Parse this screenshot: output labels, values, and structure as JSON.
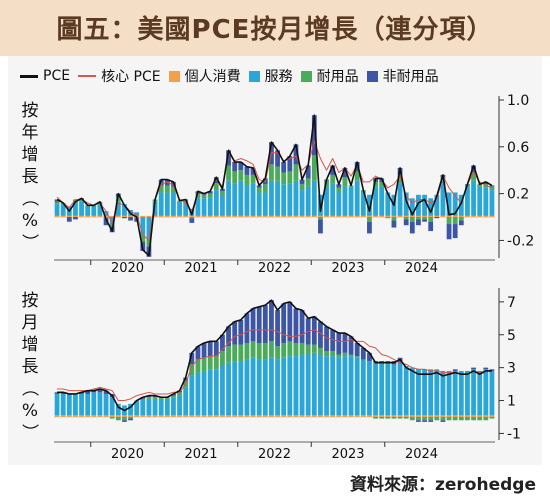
{
  "header": {
    "title": "圖五：美國PCE按月增長（連分項）"
  },
  "legend": [
    {
      "label": "PCE",
      "kind": "line",
      "color": "#111111"
    },
    {
      "label": "核心 PCE",
      "kind": "line",
      "color": "#d9534f"
    },
    {
      "label": "個人消費",
      "kind": "box",
      "color": "#f4a04a"
    },
    {
      "label": "服務",
      "kind": "box",
      "color": "#2aa7d9"
    },
    {
      "label": "耐用品",
      "kind": "box",
      "color": "#4aab5a"
    },
    {
      "label": "非耐用品",
      "kind": "box",
      "color": "#3d55a5"
    }
  ],
  "source": "資料來源：zerohedge",
  "chart_data": [
    {
      "type": "bar",
      "ylabel": "按年增長（%）",
      "ylim": [
        -0.35,
        1.0
      ],
      "yticks": [
        1.0,
        0.6,
        0.2,
        -0.2
      ],
      "ytick_labels": [
        "1.0",
        "0.6",
        "0.2",
        "-0.2"
      ],
      "xticks": [
        {
          "label": "2020",
          "year": 2020
        },
        {
          "label": "2021",
          "year": 2021
        },
        {
          "label": "2022",
          "year": 2022
        },
        {
          "label": "2023",
          "year": 2023
        },
        {
          "label": "2024",
          "year": 2024
        }
      ],
      "x_start": "2019-07",
      "series": [
        {
          "name": "PCE",
          "type": "line",
          "color": "#111111",
          "values": [
            0.15,
            0.12,
            0.05,
            0.13,
            0.16,
            0.1,
            0.1,
            0.13,
            -0.02,
            -0.12,
            0.2,
            0.1,
            0.03,
            0.0,
            -0.28,
            -0.33,
            0.15,
            0.32,
            0.32,
            0.3,
            0.14,
            0.15,
            0.02,
            0.22,
            0.2,
            0.22,
            0.34,
            0.24,
            0.57,
            0.47,
            0.47,
            0.43,
            0.42,
            0.27,
            0.33,
            0.64,
            0.57,
            0.47,
            0.52,
            0.62,
            0.32,
            0.44,
            0.87,
            0.05,
            0.32,
            0.44,
            0.28,
            0.42,
            0.27,
            0.47,
            0.23,
            0.05,
            0.33,
            0.33,
            0.2,
            0.1,
            0.42,
            0.14,
            0.02,
            0.12,
            0.15,
            0.04,
            0.18,
            0.36,
            0.02,
            0.03,
            0.12,
            0.28,
            0.44,
            0.28,
            0.3,
            0.27
          ]
        },
        {
          "name": "核心 PCE",
          "type": "line",
          "color": "#d9534f",
          "values": [
            0.17,
            0.12,
            0.08,
            0.15,
            0.15,
            0.12,
            0.1,
            0.12,
            0.05,
            -0.05,
            0.12,
            0.1,
            0.05,
            0.02,
            -0.15,
            -0.2,
            0.15,
            0.28,
            0.3,
            0.27,
            0.15,
            0.12,
            0.05,
            0.2,
            0.2,
            0.22,
            0.32,
            0.26,
            0.55,
            0.48,
            0.5,
            0.48,
            0.45,
            0.32,
            0.3,
            0.55,
            0.55,
            0.48,
            0.5,
            0.52,
            0.4,
            0.45,
            0.65,
            0.5,
            0.4,
            0.5,
            0.38,
            0.42,
            0.35,
            0.45,
            0.3,
            0.3,
            0.35,
            0.32,
            0.25,
            0.28,
            0.35,
            0.18,
            0.12,
            0.15,
            0.15,
            0.12,
            0.15,
            0.35,
            0.25,
            0.18,
            0.12,
            0.28,
            0.38,
            0.3,
            0.27,
            0.25
          ]
        },
        {
          "name": "個人消費",
          "type": "bar",
          "color": "#f4a04a",
          "values": [
            0.01,
            0.01,
            0.01,
            0.01,
            0.01,
            0.01,
            0.01,
            0.01,
            0.01,
            0.01,
            0.01,
            0.01,
            0.01,
            0.01,
            0.01,
            0.01,
            0.01,
            0.01,
            0.01,
            0.01,
            0.01,
            0.01,
            0.01,
            0.01,
            0.01,
            0.01,
            0.01,
            0.01,
            0.01,
            0.01,
            0.01,
            0.01,
            0.01,
            0.01,
            0.01,
            0.01,
            0.01,
            0.01,
            0.01,
            0.01,
            0.01,
            0.01,
            0.01,
            0.01,
            0.01,
            0.01,
            0.01,
            0.01,
            0.01,
            0.01,
            0.01,
            0.01,
            0.01,
            0.01,
            0.01,
            0.01,
            0.01,
            0.01,
            0.01,
            0.01,
            0.01,
            0.01,
            0.01,
            0.01,
            0.01,
            0.01,
            0.01,
            0.01,
            0.01,
            0.01,
            0.01,
            0.01
          ]
        },
        {
          "name": "服務",
          "type": "bar",
          "color": "#2aa7d9",
          "values": [
            0.1,
            0.1,
            0.08,
            0.12,
            0.12,
            0.08,
            0.08,
            0.1,
            0.04,
            -0.05,
            0.12,
            0.1,
            0.05,
            0.03,
            -0.15,
            -0.18,
            0.12,
            0.2,
            0.2,
            0.2,
            0.12,
            0.1,
            0.06,
            0.15,
            0.15,
            0.16,
            0.22,
            0.17,
            0.3,
            0.28,
            0.3,
            0.26,
            0.28,
            0.2,
            0.2,
            0.3,
            0.3,
            0.27,
            0.28,
            0.3,
            0.22,
            0.25,
            0.3,
            0.18,
            0.25,
            0.28,
            0.2,
            0.25,
            0.25,
            0.3,
            0.2,
            0.18,
            0.25,
            0.25,
            0.2,
            0.18,
            0.28,
            0.2,
            0.15,
            0.18,
            0.18,
            0.15,
            0.18,
            0.3,
            0.2,
            0.2,
            0.18,
            0.25,
            0.3,
            0.25,
            0.24,
            0.22
          ]
        },
        {
          "name": "耐用品",
          "type": "bar",
          "color": "#4aab5a",
          "values": [
            0.02,
            0.01,
            0.0,
            0.02,
            0.02,
            0.01,
            0.01,
            0.02,
            -0.01,
            -0.03,
            0.04,
            0.0,
            0.0,
            -0.01,
            -0.06,
            -0.07,
            0.02,
            0.06,
            0.06,
            0.05,
            0.01,
            0.03,
            -0.01,
            0.04,
            0.03,
            0.03,
            0.06,
            0.04,
            0.13,
            0.1,
            0.09,
            0.09,
            0.07,
            0.04,
            0.07,
            0.14,
            0.12,
            0.1,
            0.1,
            0.14,
            0.05,
            0.07,
            0.22,
            -0.02,
            0.05,
            0.07,
            0.04,
            0.08,
            0.01,
            0.08,
            0.02,
            -0.04,
            0.04,
            0.04,
            -0.01,
            -0.03,
            0.07,
            -0.02,
            -0.04,
            -0.02,
            -0.02,
            -0.04,
            0.0,
            0.03,
            -0.06,
            -0.06,
            -0.03,
            0.01,
            0.07,
            0.02,
            0.03,
            0.03
          ]
        },
        {
          "name": "非耐用品",
          "type": "bar",
          "color": "#3d55a5",
          "values": [
            0.02,
            0.0,
            -0.04,
            -0.02,
            0.01,
            0.0,
            0.0,
            0.0,
            -0.06,
            -0.05,
            0.03,
            -0.01,
            -0.03,
            -0.03,
            -0.08,
            -0.09,
            0.0,
            0.05,
            0.05,
            0.04,
            0.0,
            0.01,
            -0.04,
            0.02,
            0.01,
            0.02,
            0.05,
            0.02,
            0.13,
            0.08,
            0.07,
            0.07,
            0.06,
            0.02,
            0.05,
            0.19,
            0.14,
            0.09,
            0.13,
            0.17,
            0.04,
            0.11,
            0.34,
            -0.12,
            0.01,
            0.08,
            0.03,
            0.08,
            0.0,
            0.08,
            0.0,
            -0.1,
            0.03,
            0.03,
            0.0,
            -0.06,
            0.06,
            -0.05,
            -0.1,
            -0.05,
            -0.02,
            -0.08,
            -0.01,
            0.02,
            -0.13,
            -0.12,
            -0.04,
            0.01,
            0.06,
            0.0,
            0.02,
            0.01
          ]
        }
      ]
    },
    {
      "type": "bar",
      "ylabel": "按月增長（%）",
      "ylim": [
        -1.4,
        7.6
      ],
      "yticks": [
        7,
        5,
        3,
        1,
        -1
      ],
      "ytick_labels": [
        "7",
        "5",
        "3",
        "1",
        "-1"
      ],
      "xticks": [
        {
          "label": "2020",
          "year": 2020
        },
        {
          "label": "2021",
          "year": 2021
        },
        {
          "label": "2022",
          "year": 2022
        },
        {
          "label": "2023",
          "year": 2023
        },
        {
          "label": "2024",
          "year": 2024
        }
      ],
      "x_start": "2019-07",
      "series": [
        {
          "name": "PCE",
          "type": "line",
          "color": "#111111",
          "values": [
            1.5,
            1.5,
            1.4,
            1.4,
            1.5,
            1.6,
            1.6,
            1.7,
            1.6,
            1.3,
            0.6,
            0.4,
            0.6,
            1.0,
            1.2,
            1.3,
            1.3,
            1.2,
            1.2,
            1.4,
            1.6,
            2.4,
            3.9,
            4.3,
            4.5,
            4.6,
            4.6,
            5.0,
            5.5,
            5.8,
            5.9,
            6.3,
            6.6,
            6.7,
            6.8,
            7.1,
            6.5,
            6.9,
            7.0,
            6.6,
            6.5,
            6.0,
            6.1,
            5.8,
            5.5,
            5.3,
            5.1,
            5.1,
            4.9,
            4.5,
            4.2,
            3.9,
            3.3,
            3.3,
            3.3,
            3.3,
            3.5,
            3.0,
            2.8,
            2.6,
            2.6,
            2.6,
            2.7,
            2.5,
            2.6,
            2.7,
            2.6,
            2.6,
            2.8,
            2.6,
            2.8,
            2.8
          ]
        },
        {
          "name": "核心 PCE",
          "type": "line",
          "color": "#d9534f",
          "values": [
            1.7,
            1.7,
            1.6,
            1.6,
            1.6,
            1.6,
            1.7,
            1.8,
            1.7,
            1.6,
            1.0,
            1.0,
            1.1,
            1.3,
            1.4,
            1.5,
            1.4,
            1.4,
            1.4,
            1.5,
            1.5,
            2.0,
            3.1,
            3.5,
            3.6,
            3.7,
            3.7,
            4.1,
            4.5,
            4.9,
            5.0,
            5.2,
            5.3,
            5.3,
            5.3,
            5.3,
            5.2,
            5.0,
            4.9,
            4.9,
            5.0,
            5.2,
            5.3,
            5.1,
            4.8,
            4.7,
            4.6,
            4.6,
            4.7,
            4.6,
            4.6,
            4.3,
            4.2,
            3.8,
            3.7,
            3.5,
            3.3,
            3.2,
            3.0,
            2.9,
            2.9,
            2.8,
            2.8,
            2.7,
            2.7,
            2.7,
            2.6,
            2.6,
            2.8,
            2.7,
            2.8,
            2.8
          ]
        },
        {
          "name": "個人消費",
          "type": "bar",
          "color": "#f4a04a",
          "values": [
            0.1,
            0.1,
            0.1,
            0.1,
            0.1,
            0.1,
            0.1,
            0.1,
            0.1,
            0.1,
            0.1,
            0.1,
            0.1,
            0.1,
            0.1,
            0.1,
            0.1,
            0.1,
            0.1,
            0.1,
            0.1,
            0.1,
            0.1,
            0.1,
            0.1,
            0.1,
            0.1,
            0.1,
            0.1,
            0.1,
            0.1,
            0.1,
            0.1,
            0.1,
            0.1,
            0.1,
            0.1,
            0.1,
            0.1,
            0.1,
            0.1,
            0.1,
            0.1,
            0.1,
            0.1,
            0.1,
            0.1,
            0.1,
            0.1,
            0.1,
            0.1,
            0.1,
            0.1,
            0.1,
            0.1,
            0.1,
            0.1,
            0.1,
            0.1,
            0.1,
            0.1,
            0.1,
            0.1,
            0.1,
            0.1,
            0.1,
            0.1,
            0.1,
            0.1,
            0.1,
            0.1,
            0.1
          ]
        },
        {
          "name": "服務",
          "type": "bar",
          "color": "#2aa7d9",
          "values": [
            1.3,
            1.3,
            1.3,
            1.3,
            1.3,
            1.3,
            1.4,
            1.4,
            1.3,
            1.1,
            0.7,
            0.6,
            0.7,
            0.9,
            1.0,
            1.0,
            1.0,
            1.0,
            1.0,
            1.1,
            1.2,
            1.7,
            2.4,
            2.6,
            2.7,
            2.8,
            2.8,
            3.0,
            3.2,
            3.3,
            3.3,
            3.4,
            3.5,
            3.4,
            3.4,
            3.5,
            3.4,
            3.5,
            3.6,
            3.6,
            3.7,
            3.7,
            3.8,
            3.7,
            3.6,
            3.6,
            3.5,
            3.6,
            3.6,
            3.5,
            3.4,
            3.3,
            3.2,
            3.2,
            3.2,
            3.1,
            3.2,
            3.0,
            2.9,
            2.8,
            2.8,
            2.8,
            2.8,
            2.7,
            2.7,
            2.7,
            2.7,
            2.7,
            2.8,
            2.7,
            2.8,
            2.7
          ]
        },
        {
          "name": "耐用品",
          "type": "bar",
          "color": "#4aab5a",
          "values": [
            0.0,
            0.0,
            0.0,
            0.0,
            0.0,
            0.0,
            0.0,
            0.0,
            0.0,
            -0.1,
            -0.2,
            -0.2,
            -0.1,
            0.0,
            0.0,
            0.1,
            0.1,
            0.1,
            0.1,
            0.1,
            0.2,
            0.4,
            0.7,
            0.8,
            0.8,
            0.8,
            0.8,
            0.9,
            1.0,
            1.0,
            1.0,
            1.0,
            1.0,
            1.0,
            1.0,
            1.0,
            0.8,
            0.9,
            0.9,
            0.8,
            0.7,
            0.6,
            0.5,
            0.4,
            0.3,
            0.3,
            0.2,
            0.2,
            0.1,
            0.1,
            0.0,
            0.0,
            -0.1,
            -0.1,
            -0.1,
            -0.1,
            -0.1,
            -0.1,
            -0.2,
            -0.2,
            -0.2,
            -0.2,
            -0.2,
            -0.2,
            -0.2,
            -0.2,
            -0.2,
            -0.2,
            -0.2,
            -0.2,
            -0.2,
            -0.1
          ]
        },
        {
          "name": "非耐用品",
          "type": "bar",
          "color": "#3d55a5",
          "values": [
            0.1,
            0.1,
            0.0,
            0.0,
            0.1,
            0.2,
            0.1,
            0.2,
            0.2,
            0.2,
            0.0,
            -0.1,
            -0.1,
            0.0,
            0.1,
            0.1,
            0.1,
            0.0,
            0.0,
            0.1,
            0.1,
            0.2,
            0.7,
            0.8,
            0.9,
            0.9,
            0.9,
            1.0,
            1.2,
            1.4,
            1.5,
            1.8,
            2.0,
            2.2,
            2.3,
            2.5,
            2.2,
            2.4,
            2.4,
            2.1,
            2.0,
            1.6,
            1.7,
            1.6,
            1.5,
            1.3,
            1.3,
            1.2,
            1.1,
            0.8,
            0.7,
            0.5,
            0.1,
            0.1,
            0.1,
            0.2,
            0.3,
            0.0,
            0.0,
            -0.1,
            -0.1,
            -0.1,
            0.0,
            -0.1,
            0.0,
            0.1,
            0.0,
            0.0,
            0.1,
            0.0,
            0.1,
            0.1
          ]
        }
      ]
    }
  ]
}
